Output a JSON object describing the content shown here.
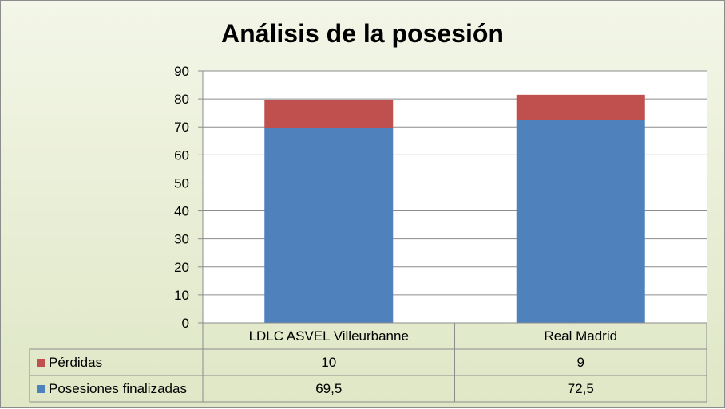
{
  "chart_data": {
    "type": "bar",
    "stacked": true,
    "title": "Análisis de la posesión",
    "categories": [
      "LDLC ASVEL Villeurbanne",
      "Real Madrid"
    ],
    "series": [
      {
        "name": "Posesiones finalizadas",
        "values": [
          69.5,
          72.5
        ],
        "value_labels": [
          "69,5",
          "72,5"
        ],
        "color": "#4f81bd"
      },
      {
        "name": "Pérdidas",
        "values": [
          10,
          9
        ],
        "value_labels": [
          "10",
          "9"
        ],
        "color": "#c0504d"
      }
    ],
    "ylim": [
      0,
      90
    ],
    "yticks": [
      0,
      10,
      20,
      30,
      40,
      50,
      60,
      70,
      80,
      90
    ],
    "grid": true,
    "legend": "data-table"
  }
}
